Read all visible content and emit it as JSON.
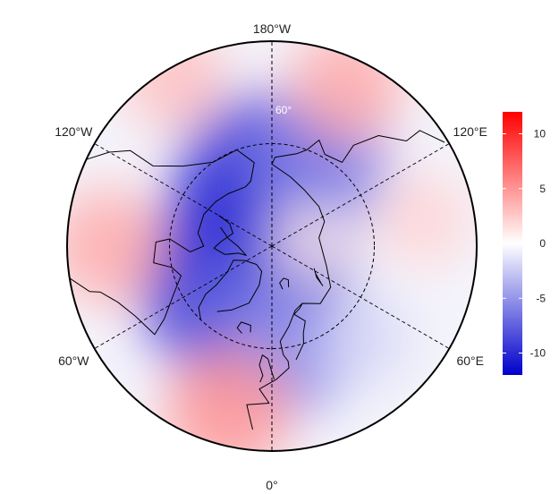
{
  "map": {
    "projection": "north-polar-stereographic",
    "center_lat": 90,
    "min_lat": 30,
    "graticule_lat": [
      30,
      60
    ],
    "lat_label": "60°",
    "lon_labels": [
      {
        "lon": 180,
        "text": "180°W"
      },
      {
        "lon": -120,
        "text": "120°W"
      },
      {
        "lon": 120,
        "text": "120°E"
      },
      {
        "lon": -60,
        "text": "60°W"
      },
      {
        "lon": 60,
        "text": "60°E"
      },
      {
        "lon": 0,
        "text": "0°"
      }
    ],
    "anomaly_field": {
      "type": "heatmap",
      "units": "",
      "range": [
        -12,
        12
      ],
      "blobs": [
        {
          "lat": 85,
          "lon": -80,
          "value": -12
        },
        {
          "lat": 72,
          "lon": -45,
          "value": -10
        },
        {
          "lat": 65,
          "lon": -20,
          "value": -7
        },
        {
          "lat": 70,
          "lon": -170,
          "value": -9
        },
        {
          "lat": 62,
          "lon": 150,
          "value": -6
        },
        {
          "lat": 58,
          "lon": 10,
          "value": -5
        },
        {
          "lat": 40,
          "lon": -15,
          "value": 5
        },
        {
          "lat": 42,
          "lon": -90,
          "value": 4
        },
        {
          "lat": 33,
          "lon": -150,
          "value": 3
        },
        {
          "lat": 38,
          "lon": 155,
          "value": 4
        },
        {
          "lat": 45,
          "lon": 100,
          "value": 2
        },
        {
          "lat": 78,
          "lon": 95,
          "value": 1
        },
        {
          "lat": 52,
          "lon": 45,
          "value": -2
        }
      ]
    }
  },
  "colorbar": {
    "colors": {
      "low": "#0000cc",
      "mid": "#ffffff",
      "high": "#ff0000"
    },
    "ticks": [
      {
        "value": 10,
        "label": "10"
      },
      {
        "value": 5,
        "label": "5"
      },
      {
        "value": 0,
        "label": "0"
      },
      {
        "value": -5,
        "label": "-5"
      },
      {
        "value": -10,
        "label": "-10"
      }
    ],
    "range": [
      -12,
      12
    ]
  }
}
